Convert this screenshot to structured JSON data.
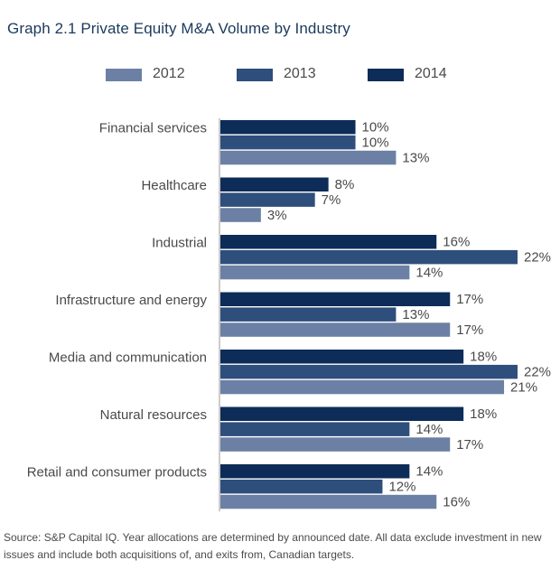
{
  "title": "Graph 2.1  Private Equity M&A Volume by Industry",
  "source": "Source: S&P Capital IQ. Year allocations are determined by announced date. All data exclude investment in new issues and include both acquisitions of, and exits from, Canadian targets.",
  "legend": [
    {
      "label": "2012",
      "color": "#6c80a5"
    },
    {
      "label": "2013",
      "color": "#2e4e7c"
    },
    {
      "label": "2014",
      "color": "#0d2c58"
    }
  ],
  "chart_data": {
    "type": "bar",
    "orientation": "horizontal",
    "title": "Graph 2.1  Private Equity M&A Volume by Industry",
    "categories": [
      "Financial services",
      "Healthcare",
      "Industrial",
      "Infrastructure and energy",
      "Media and communication",
      "Natural resources",
      "Retail and consumer products"
    ],
    "series": [
      {
        "name": "2014",
        "color": "#0d2c58",
        "values": [
          10,
          8,
          16,
          17,
          18,
          18,
          14
        ]
      },
      {
        "name": "2013",
        "color": "#2e4e7c",
        "values": [
          10,
          7,
          22,
          13,
          22,
          14,
          12
        ]
      },
      {
        "name": "2012",
        "color": "#6c80a5",
        "values": [
          13,
          3,
          14,
          17,
          21,
          17,
          16
        ]
      }
    ],
    "value_suffix": "%",
    "xlim": [
      0,
      22
    ],
    "legend_position": "top",
    "grid": false
  }
}
